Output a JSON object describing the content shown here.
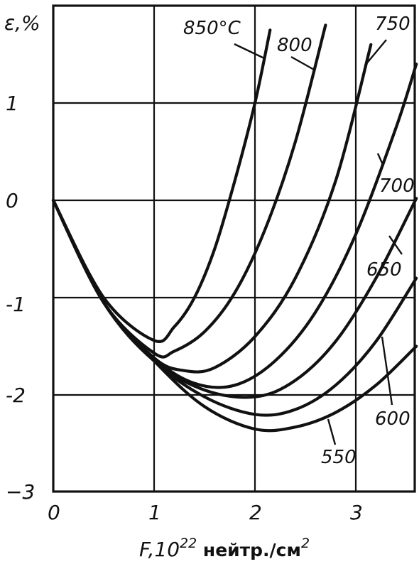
{
  "chart_data": {
    "type": "line",
    "ylabel": "ε,%",
    "xlabel_prefix": "F,10",
    "xlabel_exp": "22",
    "xlabel_unit": " нейтр./см",
    "xlabel_unit_exp": "2",
    "xlim": [
      0,
      3.6
    ],
    "ylim": [
      -3,
      2
    ],
    "x_ticks": [
      "0",
      "1",
      "2",
      "3"
    ],
    "y_ticks": [
      "1",
      "0",
      "-1",
      "-2",
      "−3"
    ],
    "grid": true,
    "series": [
      {
        "name": "850°C",
        "x": [
          0,
          0.5,
          1.0,
          1.2,
          1.4,
          1.6,
          1.8,
          2.0,
          2.15
        ],
        "y": [
          0,
          -1.0,
          -1.44,
          -1.3,
          -1.0,
          -0.5,
          0.2,
          1.0,
          1.75
        ]
      },
      {
        "name": "800",
        "x": [
          0,
          0.5,
          1.0,
          1.2,
          1.5,
          1.8,
          2.1,
          2.4,
          2.7
        ],
        "y": [
          0,
          -1.05,
          -1.57,
          -1.55,
          -1.35,
          -0.95,
          -0.3,
          0.6,
          1.8
        ]
      },
      {
        "name": "750",
        "x": [
          0,
          0.5,
          1.0,
          1.3,
          1.6,
          2.0,
          2.4,
          2.8,
          3.15
        ],
        "y": [
          0,
          -1.05,
          -1.62,
          -1.75,
          -1.72,
          -1.4,
          -0.8,
          0.2,
          1.6
        ]
      },
      {
        "name": "700",
        "x": [
          0,
          0.5,
          1.0,
          1.4,
          1.8,
          2.2,
          2.6,
          3.0,
          3.4,
          3.6
        ],
        "y": [
          0,
          -1.05,
          -1.62,
          -1.88,
          -1.9,
          -1.65,
          -1.15,
          -0.35,
          0.75,
          1.4
        ]
      },
      {
        "name": "650",
        "x": [
          0,
          0.5,
          1.0,
          1.5,
          2.0,
          2.4,
          2.8,
          3.2,
          3.6
        ],
        "y": [
          0,
          -1.05,
          -1.65,
          -1.95,
          -2.02,
          -1.85,
          -1.45,
          -0.8,
          0.02
        ]
      },
      {
        "name": "600",
        "x": [
          0,
          0.5,
          1.0,
          1.5,
          2.0,
          2.4,
          2.8,
          3.2,
          3.6
        ],
        "y": [
          0,
          -1.05,
          -1.65,
          -2.02,
          -2.2,
          -2.15,
          -1.9,
          -1.45,
          -0.8
        ]
      },
      {
        "name": "550",
        "x": [
          0,
          0.5,
          1.0,
          1.5,
          2.0,
          2.4,
          2.8,
          3.2,
          3.6
        ],
        "y": [
          0,
          -1.05,
          -1.65,
          -2.12,
          -2.35,
          -2.33,
          -2.18,
          -1.9,
          -1.5
        ]
      }
    ]
  }
}
